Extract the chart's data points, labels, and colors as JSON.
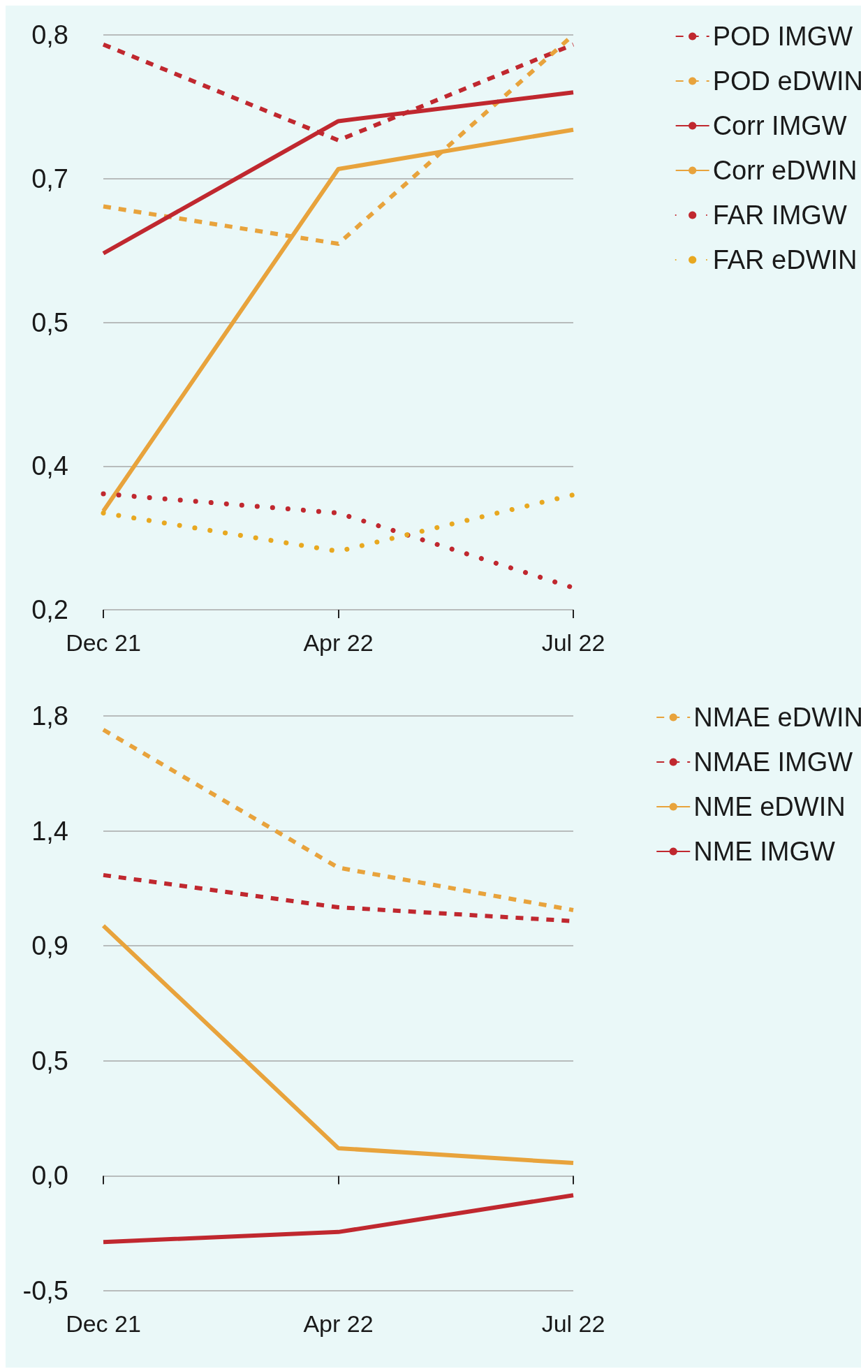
{
  "chart_data": [
    {
      "type": "line",
      "categories": [
        "Dec 21",
        "Apr 22",
        "Jul 22"
      ],
      "ylim": [
        0.2,
        0.8
      ],
      "yticks": [
        {
          "value": 0.2,
          "label": "0,2"
        },
        {
          "value": 0.35,
          "label": "0,4"
        },
        {
          "value": 0.5,
          "label": "0,5"
        },
        {
          "value": 0.65,
          "label": "0,7"
        },
        {
          "value": 0.8,
          "label": "0,8"
        }
      ],
      "grid": "y",
      "legend": "top right",
      "marker": "none",
      "series": [
        {
          "name": "POD IMGW",
          "color": "#c0282f",
          "line_style": "dashed",
          "values": [
            0.79,
            0.69,
            0.79
          ]
        },
        {
          "name": "POD eDWIN",
          "color": "#e8a33c",
          "line_style": "dashed",
          "values": [
            0.621,
            0.582,
            0.8
          ]
        },
        {
          "name": "Corr IMGW",
          "color": "#c0282f",
          "line_style": "solid",
          "values": [
            0.572,
            0.71,
            0.74
          ]
        },
        {
          "name": "Corr eDWIN",
          "color": "#e8a33c",
          "line_style": "solid",
          "values": [
            0.303,
            0.66,
            0.701
          ]
        },
        {
          "name": "FAR IMGW",
          "color": "#c0282f",
          "line_style": "dotted",
          "values": [
            0.321,
            0.301,
            0.223
          ]
        },
        {
          "name": "FAR eDWIN",
          "color": "#e8a820",
          "line_style": "dotted",
          "values": [
            0.301,
            0.261,
            0.32
          ]
        }
      ]
    },
    {
      "type": "line",
      "categories": [
        "Dec 21",
        "Apr 22",
        "Jul 22"
      ],
      "ylim": [
        -0.45,
        1.8
      ],
      "yticks": [
        {
          "value": -0.45,
          "label": "-0,5"
        },
        {
          "value": 0,
          "label": "0,0"
        },
        {
          "value": 0.45,
          "label": "0,5"
        },
        {
          "value": 0.9,
          "label": "0,9"
        },
        {
          "value": 1.35,
          "label": "1,4"
        },
        {
          "value": 1.8,
          "label": "1,8"
        }
      ],
      "grid": "y",
      "legend": "top right",
      "marker": "none",
      "series": [
        {
          "name": "NMAE eDWIN",
          "color": "#e8a33c",
          "line_style": "dashed",
          "values": [
            1.746,
            1.206,
            1.04
          ]
        },
        {
          "name": "NMAE IMGW",
          "color": "#c0282f",
          "line_style": "dashed",
          "values": [
            1.177,
            1.051,
            0.997
          ]
        },
        {
          "name": "NME eDWIN",
          "color": "#e8a33c",
          "line_style": "solid",
          "values": [
            0.979,
            0.108,
            0.05
          ]
        },
        {
          "name": "NME IMGW",
          "color": "#c0282f",
          "line_style": "solid",
          "values": [
            -0.259,
            -0.22,
            -0.076
          ]
        }
      ]
    }
  ]
}
